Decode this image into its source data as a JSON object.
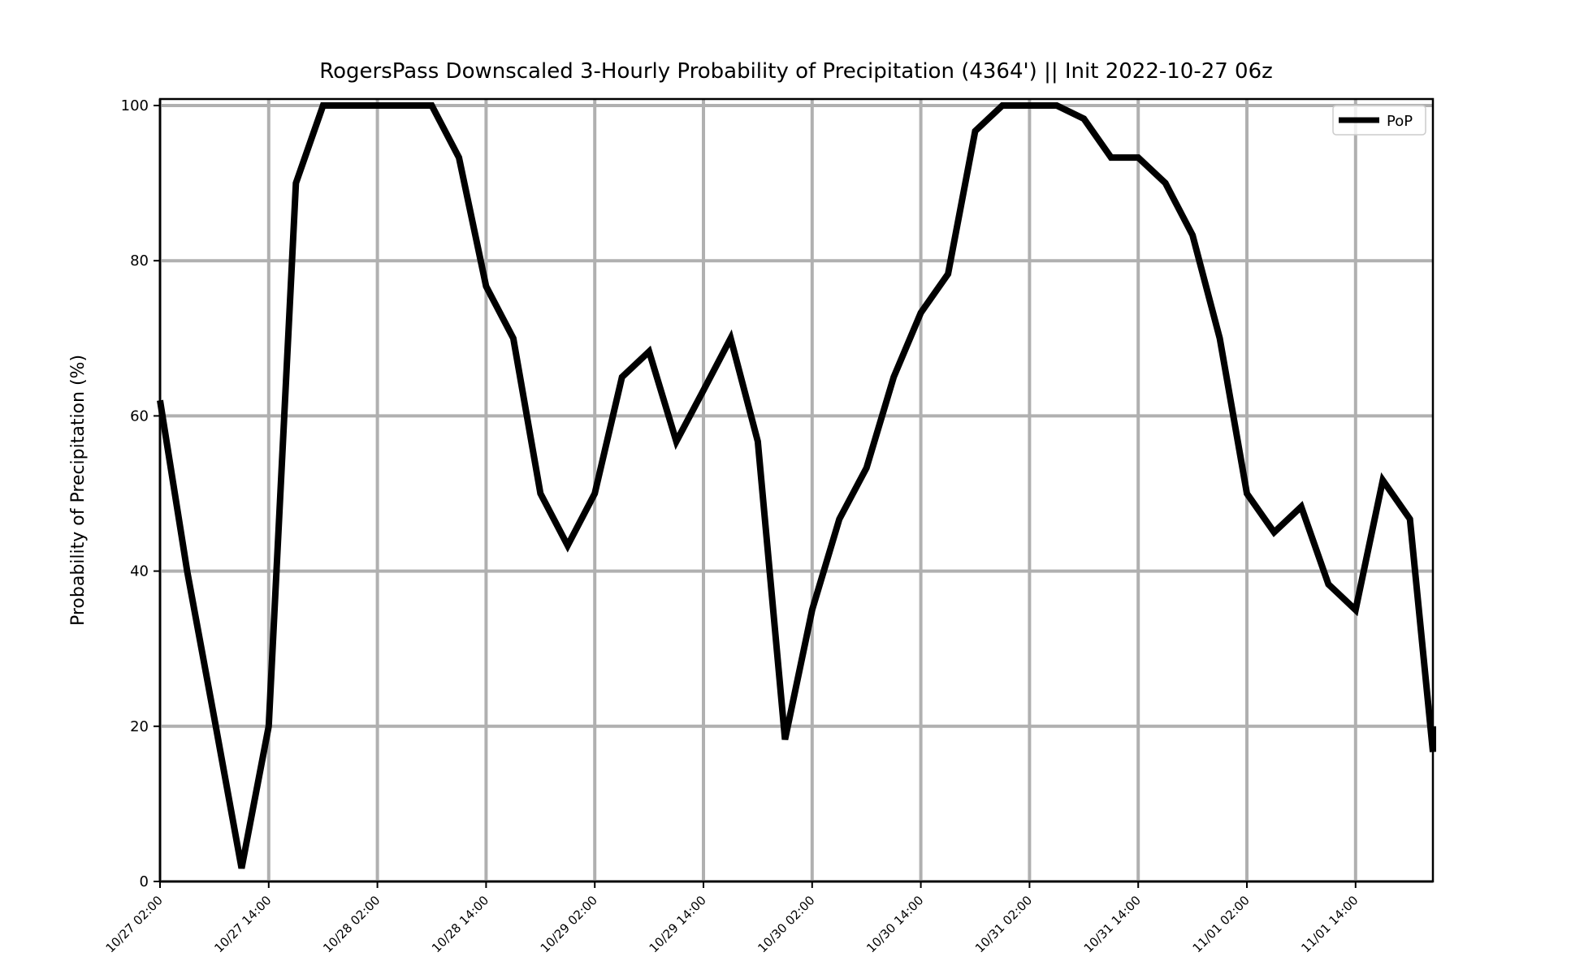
{
  "chart_data": {
    "type": "line",
    "title": "RogersPass Downscaled 3-Hourly Probability of Precipitation (4364') || Init 2022-10-27 06z",
    "xlabel": "",
    "ylabel": "Probability of Precipitation (%)",
    "ylim": [
      0,
      100
    ],
    "yticks": [
      0,
      20,
      40,
      60,
      80,
      100
    ],
    "xlim": [
      "10/27 02:00",
      "11/01 23:00"
    ],
    "x_start": "10/27 02:00",
    "x_step_hours": 3,
    "xticks": [
      "10/27 02:00",
      "10/27 14:00",
      "10/28 02:00",
      "10/28 14:00",
      "10/29 02:00",
      "10/29 14:00",
      "10/30 02:00",
      "10/30 14:00",
      "10/31 02:00",
      "10/31 14:00",
      "11/01 02:00",
      "11/01 14:00"
    ],
    "grid": true,
    "legend_position": "top-right",
    "series": [
      {
        "name": "PoP",
        "color": "#000000",
        "values": [
          62,
          40,
          21,
          1.7,
          20,
          90,
          100,
          100,
          100,
          100,
          100,
          93.3,
          76.7,
          70,
          50,
          43.3,
          50,
          65,
          68.3,
          56.7,
          63.3,
          70,
          56.7,
          18.3,
          35,
          46.7,
          53.3,
          65,
          73.3,
          78.3,
          96.7,
          100,
          100,
          100,
          98.3,
          93.3,
          93.3,
          90,
          83.3,
          70,
          50,
          45,
          48.3,
          38.3,
          35,
          51.7,
          46.7,
          16.7,
          20
        ]
      }
    ]
  },
  "colors": {
    "grid": "#b0b0b0",
    "line": "#000000",
    "axes": "#000000",
    "legend_border": "#cccccc"
  }
}
